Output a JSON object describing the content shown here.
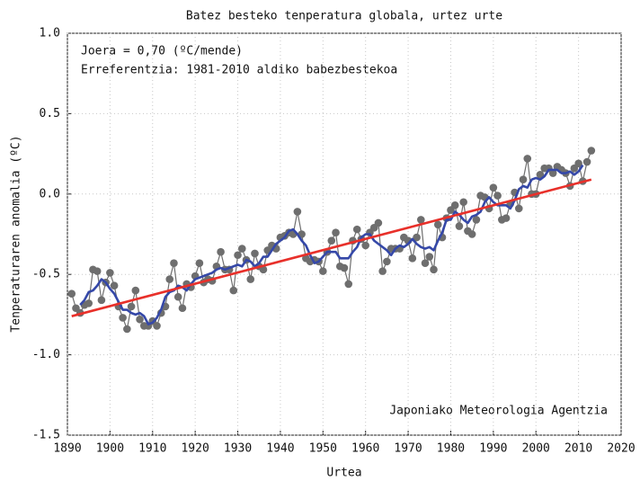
{
  "chart_data": {
    "type": "line",
    "title": "Batez besteko tenperatura globala, urtez urte",
    "xlabel": "Urtea",
    "ylabel": "Tenperaturaren anomalia (ºC)",
    "annotations": [
      "Joera = 0,70 (ºC/mende)",
      "Erreferentzia: 1981-2010 aldiko babezbestekoa",
      "Japoniako Meteorologia Agentzia"
    ],
    "xlim": [
      1890,
      2020
    ],
    "xticks": [
      1890,
      1900,
      1910,
      1920,
      1930,
      1940,
      1950,
      1960,
      1970,
      1980,
      1990,
      2000,
      2010,
      2020
    ],
    "ylim": [
      -1.5,
      1.0
    ],
    "yticks": [
      {
        "value": 1.0,
        "label": "1.0"
      },
      0.5,
      {
        "value": 0,
        "label": "0.0"
      },
      -0.5,
      {
        "value": -1.0,
        "label": "-1.0"
      },
      -1.5
    ],
    "grid": true,
    "x": [
      1891,
      1892,
      1893,
      1894,
      1895,
      1896,
      1897,
      1898,
      1899,
      1900,
      1901,
      1902,
      1903,
      1904,
      1905,
      1906,
      1907,
      1908,
      1909,
      1910,
      1911,
      1912,
      1913,
      1914,
      1915,
      1916,
      1917,
      1918,
      1919,
      1920,
      1921,
      1922,
      1923,
      1924,
      1925,
      1926,
      1927,
      1928,
      1929,
      1930,
      1931,
      1932,
      1933,
      1934,
      1935,
      1936,
      1937,
      1938,
      1939,
      1940,
      1941,
      1942,
      1943,
      1944,
      1945,
      1946,
      1947,
      1948,
      1949,
      1950,
      1951,
      1952,
      1953,
      1954,
      1955,
      1956,
      1957,
      1958,
      1959,
      1960,
      1961,
      1962,
      1963,
      1964,
      1965,
      1966,
      1967,
      1968,
      1969,
      1970,
      1971,
      1972,
      1973,
      1974,
      1975,
      1976,
      1977,
      1978,
      1979,
      1980,
      1981,
      1982,
      1983,
      1984,
      1985,
      1986,
      1987,
      1988,
      1989,
      1990,
      1991,
      1992,
      1993,
      1994,
      1995,
      1996,
      1997,
      1998,
      1999,
      2000,
      2001,
      2002,
      2003,
      2004,
      2005,
      2006,
      2007,
      2008,
      2009,
      2010,
      2011,
      2012,
      2013
    ],
    "series": [
      {
        "color": "#6e6e6e",
        "markers": true,
        "values": [
          -0.62,
          -0.71,
          -0.74,
          -0.69,
          -0.68,
          -0.47,
          -0.48,
          -0.66,
          -0.55,
          -0.49,
          -0.57,
          -0.7,
          -0.77,
          -0.84,
          -0.7,
          -0.6,
          -0.78,
          -0.82,
          -0.82,
          -0.79,
          -0.82,
          -0.74,
          -0.7,
          -0.53,
          -0.43,
          -0.64,
          -0.71,
          -0.56,
          -0.58,
          -0.51,
          -0.43,
          -0.55,
          -0.53,
          -0.54,
          -0.45,
          -0.36,
          -0.47,
          -0.47,
          -0.6,
          -0.38,
          -0.34,
          -0.41,
          -0.53,
          -0.37,
          -0.45,
          -0.47,
          -0.35,
          -0.32,
          -0.34,
          -0.27,
          -0.26,
          -0.24,
          -0.25,
          -0.11,
          -0.25,
          -0.4,
          -0.42,
          -0.41,
          -0.42,
          -0.48,
          -0.36,
          -0.29,
          -0.24,
          -0.45,
          -0.46,
          -0.56,
          -0.29,
          -0.22,
          -0.28,
          -0.32,
          -0.24,
          -0.21,
          -0.18,
          -0.48,
          -0.42,
          -0.34,
          -0.34,
          -0.34,
          -0.27,
          -0.29,
          -0.4,
          -0.27,
          -0.16,
          -0.43,
          -0.39,
          -0.47,
          -0.19,
          -0.27,
          -0.15,
          -0.1,
          -0.07,
          -0.2,
          -0.05,
          -0.23,
          -0.25,
          -0.16,
          -0.01,
          -0.02,
          -0.09,
          0.04,
          -0.01,
          -0.16,
          -0.15,
          -0.06,
          0.01,
          -0.09,
          0.09,
          0.22,
          0.0,
          0.0,
          0.12,
          0.16,
          0.16,
          0.13,
          0.17,
          0.15,
          0.13,
          0.05,
          0.16,
          0.19,
          0.08,
          0.2,
          0.27
        ]
      },
      {
        "color": "#3548a8",
        "values": [
          null,
          null,
          -0.69,
          -0.66,
          -0.61,
          -0.6,
          -0.57,
          -0.53,
          -0.55,
          -0.59,
          -0.62,
          -0.67,
          -0.72,
          -0.72,
          -0.74,
          -0.75,
          -0.74,
          -0.76,
          -0.81,
          -0.8,
          -0.77,
          -0.72,
          -0.64,
          -0.61,
          -0.6,
          -0.57,
          -0.58,
          -0.6,
          -0.56,
          -0.53,
          -0.52,
          -0.51,
          -0.5,
          -0.49,
          -0.47,
          -0.46,
          -0.47,
          -0.46,
          -0.45,
          -0.44,
          -0.45,
          -0.41,
          -0.42,
          -0.45,
          -0.43,
          -0.39,
          -0.39,
          -0.35,
          -0.31,
          -0.29,
          -0.27,
          -0.23,
          -0.22,
          -0.25,
          -0.29,
          -0.32,
          -0.38,
          -0.43,
          -0.42,
          -0.39,
          -0.36,
          -0.36,
          -0.36,
          -0.4,
          -0.4,
          -0.4,
          -0.36,
          -0.33,
          -0.27,
          -0.25,
          -0.25,
          -0.29,
          -0.31,
          -0.33,
          -0.35,
          -0.38,
          -0.34,
          -0.32,
          -0.33,
          -0.31,
          -0.28,
          -0.31,
          -0.33,
          -0.34,
          -0.33,
          -0.35,
          -0.29,
          -0.24,
          -0.16,
          -0.16,
          -0.11,
          -0.13,
          -0.16,
          -0.18,
          -0.14,
          -0.13,
          -0.11,
          -0.05,
          -0.02,
          -0.05,
          -0.07,
          -0.07,
          -0.07,
          -0.09,
          -0.04,
          0.03,
          0.05,
          0.04,
          0.09,
          0.1,
          0.09,
          0.11,
          0.15,
          0.15,
          0.15,
          0.13,
          0.13,
          0.14,
          0.12,
          0.14,
          0.18,
          null,
          null
        ]
      },
      {
        "color": "#e8302a",
        "x": [
          1891,
          2013
        ],
        "values": [
          -0.76,
          0.09
        ]
      }
    ]
  }
}
